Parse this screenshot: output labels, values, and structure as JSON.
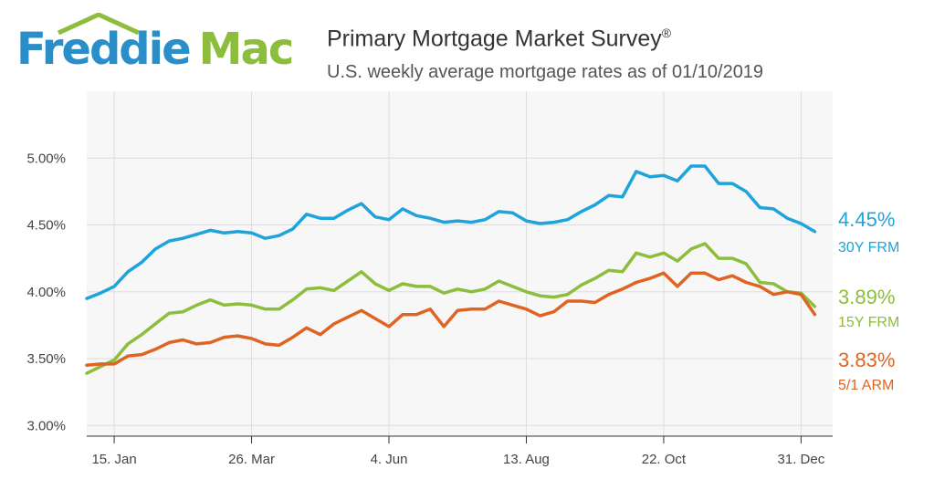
{
  "header": {
    "logo_part1": "Freddie",
    "logo_part2": "Mac",
    "title": "Primary Mortgage Market Survey",
    "title_mark": "®",
    "subtitle": "U.S. weekly average mortgage rates as of 01/10/2019"
  },
  "colors": {
    "freddie_blue": "#2a8ec9",
    "mac_green": "#8cbd3c"
  },
  "chart_data": {
    "type": "line",
    "title": "Primary Mortgage Market Survey®",
    "subtitle": "U.S. weekly average mortgage rates as of 01/10/2019",
    "xlabel": "",
    "ylabel": "",
    "x_tick_labels": [
      "15. Jan",
      "26. Mar",
      "4. Jun",
      "13. Aug",
      "22. Oct",
      "31. Dec"
    ],
    "x_tick_weeks": [
      2,
      12,
      22,
      32,
      42,
      52
    ],
    "y_ticks": [
      "3.00%",
      "3.50%",
      "4.00%",
      "4.50%",
      "5.00%"
    ],
    "y_tick_values": [
      3.0,
      3.5,
      4.0,
      4.5,
      5.0
    ],
    "ylim": [
      2.92,
      5.5
    ],
    "x_range_weeks": [
      0,
      54.3
    ],
    "grid": true,
    "legend_placement": "right end labels",
    "series": [
      {
        "name": "30Y FRM",
        "end_label": "4.45%",
        "color": "#1ea4db",
        "values": [
          3.95,
          3.99,
          4.04,
          4.15,
          4.22,
          4.32,
          4.38,
          4.4,
          4.43,
          4.46,
          4.44,
          4.45,
          4.44,
          4.4,
          4.42,
          4.47,
          4.58,
          4.55,
          4.55,
          4.61,
          4.66,
          4.56,
          4.54,
          4.62,
          4.57,
          4.55,
          4.52,
          4.53,
          4.52,
          4.54,
          4.6,
          4.59,
          4.53,
          4.51,
          4.52,
          4.54,
          4.6,
          4.65,
          4.72,
          4.71,
          4.9,
          4.86,
          4.87,
          4.83,
          4.94,
          4.94,
          4.81,
          4.81,
          4.75,
          4.63,
          4.62,
          4.55,
          4.51,
          4.45
        ]
      },
      {
        "name": "15Y FRM",
        "end_label": "3.89%",
        "color": "#8cbd3c",
        "values": [
          3.39,
          3.44,
          3.49,
          3.61,
          3.68,
          3.76,
          3.84,
          3.85,
          3.9,
          3.94,
          3.9,
          3.91,
          3.9,
          3.87,
          3.87,
          3.94,
          4.02,
          4.03,
          4.01,
          4.08,
          4.15,
          4.06,
          4.01,
          4.06,
          4.04,
          4.04,
          3.99,
          4.02,
          4.0,
          4.02,
          4.08,
          4.04,
          4.0,
          3.97,
          3.96,
          3.98,
          4.05,
          4.1,
          4.16,
          4.15,
          4.29,
          4.26,
          4.29,
          4.23,
          4.32,
          4.36,
          4.25,
          4.25,
          4.21,
          4.07,
          4.06,
          4.0,
          3.99,
          3.89
        ]
      },
      {
        "name": "5/1 ARM",
        "end_label": "3.83%",
        "color": "#e06421",
        "values": [
          3.45,
          3.46,
          3.46,
          3.52,
          3.53,
          3.57,
          3.62,
          3.64,
          3.61,
          3.62,
          3.66,
          3.67,
          3.65,
          3.61,
          3.6,
          3.66,
          3.73,
          3.68,
          3.76,
          3.81,
          3.86,
          3.8,
          3.74,
          3.83,
          3.83,
          3.87,
          3.74,
          3.86,
          3.87,
          3.87,
          3.93,
          3.9,
          3.87,
          3.82,
          3.85,
          3.93,
          3.93,
          3.92,
          3.98,
          4.02,
          4.07,
          4.1,
          4.14,
          4.04,
          4.14,
          4.14,
          4.09,
          4.12,
          4.07,
          4.04,
          3.98,
          4.0,
          3.98,
          3.83
        ]
      }
    ]
  }
}
